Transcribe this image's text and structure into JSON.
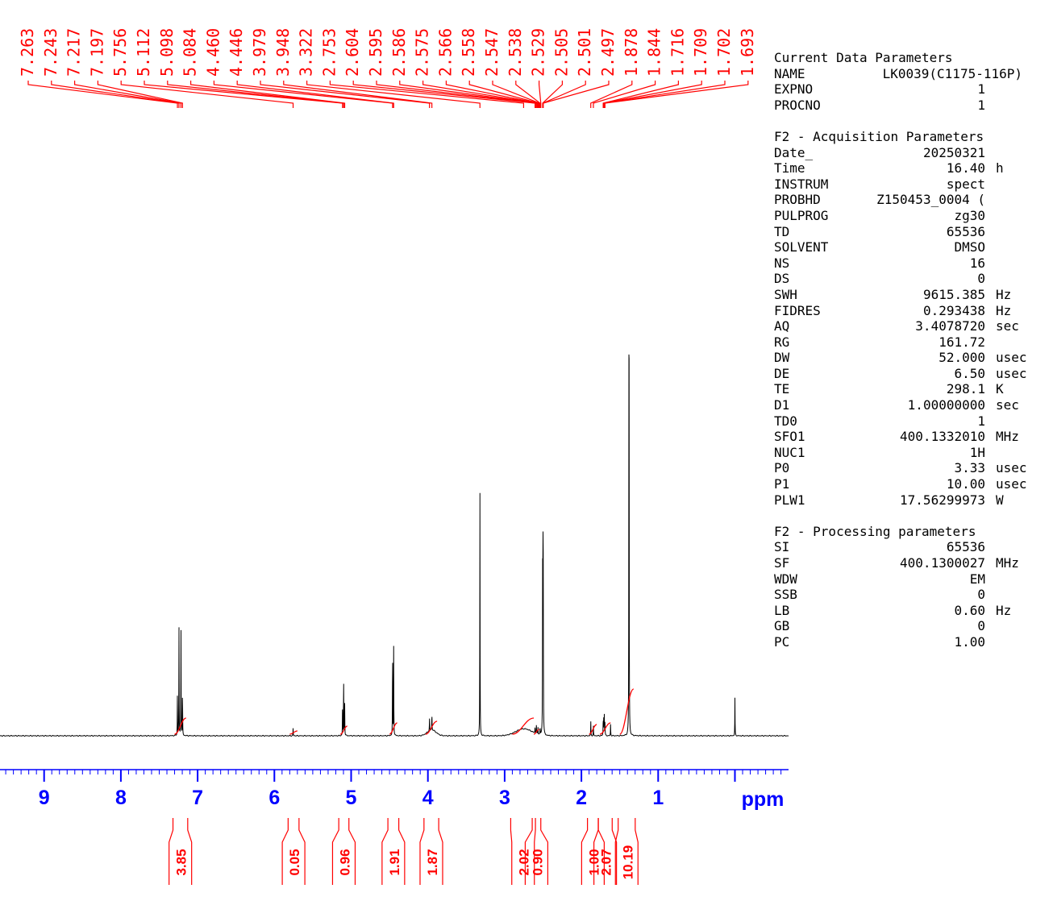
{
  "chart_data": {
    "type": "line",
    "xlabel": "ppm",
    "x_ticks": [
      "9",
      "8",
      "7",
      "6",
      "5",
      "4",
      "3",
      "2",
      "1"
    ],
    "xlim": [
      10.0,
      -0.7
    ],
    "peak_labels": [
      "7.263",
      "7.243",
      "7.217",
      "7.197",
      "5.756",
      "5.112",
      "5.098",
      "5.084",
      "4.460",
      "4.446",
      "3.979",
      "3.948",
      "3.322",
      "2.753",
      "2.604",
      "2.595",
      "2.586",
      "2.575",
      "2.566",
      "2.558",
      "2.547",
      "2.538",
      "2.529",
      "2.505",
      "2.501",
      "2.497",
      "1.878",
      "1.844",
      "1.716",
      "1.709",
      "1.702",
      "1.693"
    ],
    "integrals": [
      {
        "label": "3.85",
        "from": 7.3,
        "to": 7.15
      },
      {
        "label": "0.05",
        "from": 5.8,
        "to": 5.7
      },
      {
        "label": "0.96",
        "from": 5.14,
        "to": 5.05
      },
      {
        "label": "1.91",
        "from": 4.5,
        "to": 4.4
      },
      {
        "label": "1.87",
        "from": 4.03,
        "to": 3.88
      },
      {
        "label": "2.02",
        "from": 2.9,
        "to": 2.62
      },
      {
        "label": "0.90",
        "from": 2.62,
        "to": 2.55
      },
      {
        "label": "1.00",
        "from": 1.9,
        "to": 1.8
      },
      {
        "label": "2.07",
        "from": 1.76,
        "to": 1.62
      },
      {
        "label": "10.19",
        "from": 1.5,
        "to": 1.32
      }
    ],
    "peaks": [
      {
        "x": 7.263,
        "y": 0.076
      },
      {
        "x": 7.243,
        "y": 0.192
      },
      {
        "x": 7.217,
        "y": 0.202
      },
      {
        "x": 7.197,
        "y": 0.082
      },
      {
        "x": 5.756,
        "y": 0.013
      },
      {
        "x": 5.112,
        "y": 0.055
      },
      {
        "x": 5.098,
        "y": 0.106
      },
      {
        "x": 5.084,
        "y": 0.055
      },
      {
        "x": 4.46,
        "y": 0.157
      },
      {
        "x": 4.446,
        "y": 0.153
      },
      {
        "x": 3.979,
        "y": 0.022
      },
      {
        "x": 3.948,
        "y": 0.03
      },
      {
        "x": 3.322,
        "y": 0.418
      },
      {
        "x": 2.604,
        "y": 0.012
      },
      {
        "x": 2.586,
        "y": 0.016
      },
      {
        "x": 2.566,
        "y": 0.012
      },
      {
        "x": 2.538,
        "y": 0.013
      },
      {
        "x": 2.505,
        "y": 0.247
      },
      {
        "x": 2.501,
        "y": 0.338
      },
      {
        "x": 2.497,
        "y": 0.245
      },
      {
        "x": 1.878,
        "y": 0.025
      },
      {
        "x": 1.844,
        "y": 0.018
      },
      {
        "x": 1.716,
        "y": 0.032
      },
      {
        "x": 1.709,
        "y": 0.03
      },
      {
        "x": 1.702,
        "y": 0.036
      },
      {
        "x": 1.693,
        "y": 0.026
      },
      {
        "x": 1.62,
        "y": 0.02
      },
      {
        "x": 1.38,
        "y": 1.0
      },
      {
        "x": 0.0,
        "y": 0.065
      }
    ],
    "broad_humps": [
      {
        "x": 2.75,
        "y": 0.012,
        "width": 0.15
      },
      {
        "x": 3.95,
        "y": 0.01,
        "width": 0.08
      }
    ],
    "colors": {
      "spectrum": "#000000",
      "axis": "#0000ff",
      "annotation": "#ff0000"
    }
  },
  "parameters": {
    "current": {
      "title": "Current Data Parameters",
      "rows": [
        {
          "name": "NAME",
          "value": "LK0039(C1175-116P)",
          "unit": ""
        },
        {
          "name": "EXPNO",
          "value": "1",
          "unit": ""
        },
        {
          "name": "PROCNO",
          "value": "1",
          "unit": ""
        }
      ]
    },
    "acquisition": {
      "title": "F2 - Acquisition Parameters",
      "rows": [
        {
          "name": "Date_",
          "value": "20250321",
          "unit": ""
        },
        {
          "name": "Time",
          "value": "16.40",
          "unit": "h"
        },
        {
          "name": "INSTRUM",
          "value": "spect",
          "unit": ""
        },
        {
          "name": "PROBHD",
          "value": "Z150453_0004 (",
          "unit": ""
        },
        {
          "name": "PULPROG",
          "value": "zg30",
          "unit": ""
        },
        {
          "name": "TD",
          "value": "65536",
          "unit": ""
        },
        {
          "name": "SOLVENT",
          "value": "DMSO",
          "unit": ""
        },
        {
          "name": "NS",
          "value": "16",
          "unit": ""
        },
        {
          "name": "DS",
          "value": "0",
          "unit": ""
        },
        {
          "name": "SWH",
          "value": "9615.385",
          "unit": "Hz"
        },
        {
          "name": "FIDRES",
          "value": "0.293438",
          "unit": "Hz"
        },
        {
          "name": "AQ",
          "value": "3.4078720",
          "unit": "sec"
        },
        {
          "name": "RG",
          "value": "161.72",
          "unit": ""
        },
        {
          "name": "DW",
          "value": "52.000",
          "unit": "usec"
        },
        {
          "name": "DE",
          "value": "6.50",
          "unit": "usec"
        },
        {
          "name": "TE",
          "value": "298.1",
          "unit": "K"
        },
        {
          "name": "D1",
          "value": "1.00000000",
          "unit": "sec"
        },
        {
          "name": "TD0",
          "value": "1",
          "unit": ""
        },
        {
          "name": "SFO1",
          "value": "400.1332010",
          "unit": "MHz"
        },
        {
          "name": "NUC1",
          "value": "1H",
          "unit": ""
        },
        {
          "name": "P0",
          "value": "3.33",
          "unit": "usec"
        },
        {
          "name": "P1",
          "value": "10.00",
          "unit": "usec"
        },
        {
          "name": "PLW1",
          "value": "17.56299973",
          "unit": "W"
        }
      ]
    },
    "processing": {
      "title": "F2 - Processing parameters",
      "rows": [
        {
          "name": "SI",
          "value": "65536",
          "unit": ""
        },
        {
          "name": "SF",
          "value": "400.1300027",
          "unit": "MHz"
        },
        {
          "name": "WDW",
          "value": "EM",
          "unit": ""
        },
        {
          "name": "SSB",
          "value": "0",
          "unit": ""
        },
        {
          "name": "LB",
          "value": "0.60",
          "unit": "Hz"
        },
        {
          "name": "GB",
          "value": "0",
          "unit": ""
        },
        {
          "name": "PC",
          "value": "1.00",
          "unit": ""
        }
      ]
    }
  }
}
